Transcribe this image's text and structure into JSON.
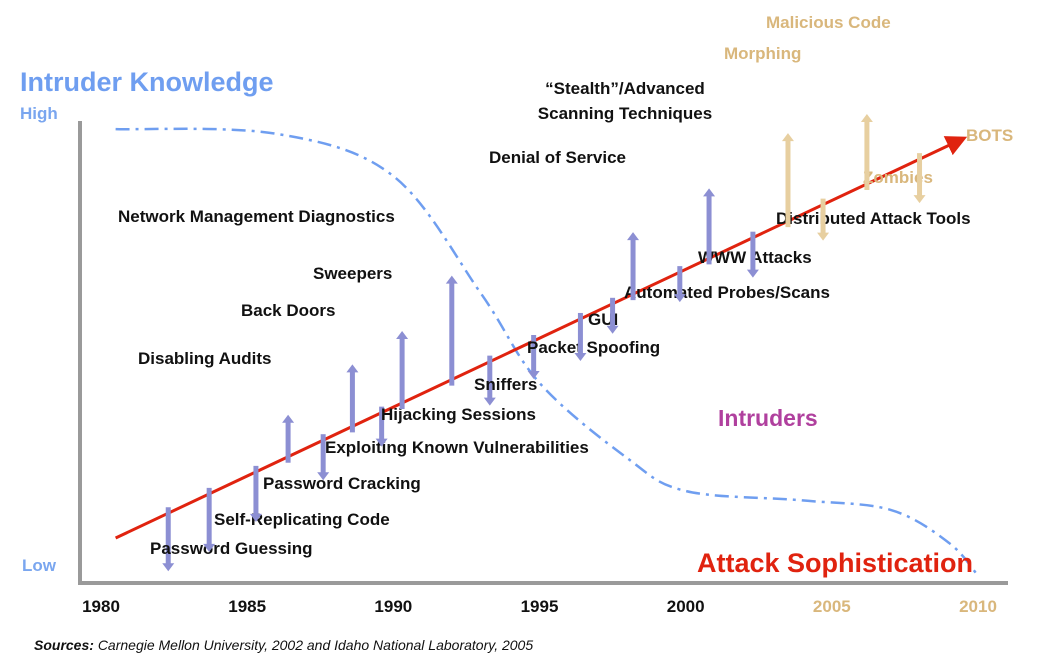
{
  "chart_data": {
    "type": "line",
    "title": "",
    "x_ticks": [
      "1980",
      "1985",
      "1990",
      "1995",
      "2000",
      "2005",
      "2010"
    ],
    "xlim": [
      1980,
      2010
    ],
    "y_labels": {
      "top": "High",
      "bottom": "Low"
    },
    "y_axis_title": "Intruder Knowledge",
    "series": [
      {
        "name": "Attack Sophistication",
        "type": "line",
        "color": "#e0230f",
        "x": [
          1980.5,
          2009.5
        ],
        "y": [
          0.1,
          0.95
        ]
      },
      {
        "name": "Intruders",
        "type": "dash-dot-curve",
        "color": "#6f9ef0",
        "x": [
          1980.5,
          1986,
          1990,
          1993,
          1995,
          1998,
          2000,
          2004,
          2007,
          2009,
          2010
        ],
        "y": [
          0.97,
          0.96,
          0.87,
          0.62,
          0.43,
          0.27,
          0.2,
          0.18,
          0.16,
          0.09,
          0.02
        ]
      }
    ],
    "events": [
      {
        "label": "Password Guessing",
        "year": 1982.3,
        "dir": "down",
        "future": false
      },
      {
        "label": "Self-Replicating Code",
        "year": 1983.7,
        "dir": "down",
        "future": false
      },
      {
        "label": "Password Cracking",
        "year": 1985.3,
        "dir": "down",
        "future": false
      },
      {
        "label": "Disabling Audits",
        "year": 1986.4,
        "dir": "up",
        "future": false
      },
      {
        "label": "Exploiting Known Vulnerabilities",
        "year": 1987.6,
        "dir": "down",
        "future": false
      },
      {
        "label": "Back Doors",
        "year": 1988.6,
        "dir": "up",
        "future": false
      },
      {
        "label": "Hijacking Sessions",
        "year": 1989.6,
        "dir": "down",
        "future": false
      },
      {
        "label": "Sweepers",
        "year": 1990.3,
        "dir": "up",
        "future": false
      },
      {
        "label": "Network Management Diagnostics",
        "year": 1992.0,
        "dir": "up",
        "future": false
      },
      {
        "label": "Sniffers",
        "year": 1993.3,
        "dir": "down",
        "future": false
      },
      {
        "label": "Packet Spoofing",
        "year": 1994.8,
        "dir": "down",
        "future": false
      },
      {
        "label": "GUI",
        "year": 1996.4,
        "dir": "down",
        "future": false
      },
      {
        "label": "Automated Probes/Scans",
        "year": 1997.5,
        "dir": "down",
        "future": false
      },
      {
        "label": "Denial of Service",
        "year": 1998.2,
        "dir": "up",
        "future": false
      },
      {
        "label": "WWW Attacks",
        "year": 1999.8,
        "dir": "down",
        "future": false
      },
      {
        "label": "“Stealth”/Advanced Scanning Techniques",
        "year": 2000.8,
        "dir": "up",
        "future": false
      },
      {
        "label": "Distributed Attack Tools",
        "year": 2002.3,
        "dir": "down",
        "future": false
      },
      {
        "label": "Morphing",
        "year": 2003.5,
        "dir": "up",
        "future": true
      },
      {
        "label": "Zombies",
        "year": 2004.7,
        "dir": "down",
        "future": true
      },
      {
        "label": "Malicious Code",
        "year": 2006.2,
        "dir": "up",
        "future": true
      },
      {
        "label": "BOTS",
        "year": 2008.0,
        "dir": "down",
        "future": true
      }
    ],
    "legend": "none",
    "grid": false,
    "colors": {
      "event_arrow": "#8c8fd3",
      "future_arrow": "#e7cfa0",
      "future_text": "#d9b77c",
      "axis": "#9a9a9a"
    }
  },
  "source": {
    "prefix": "Sources:",
    "text": "Carnegie Mellon University, 2002 and Idaho National Laboratory, 2005"
  }
}
